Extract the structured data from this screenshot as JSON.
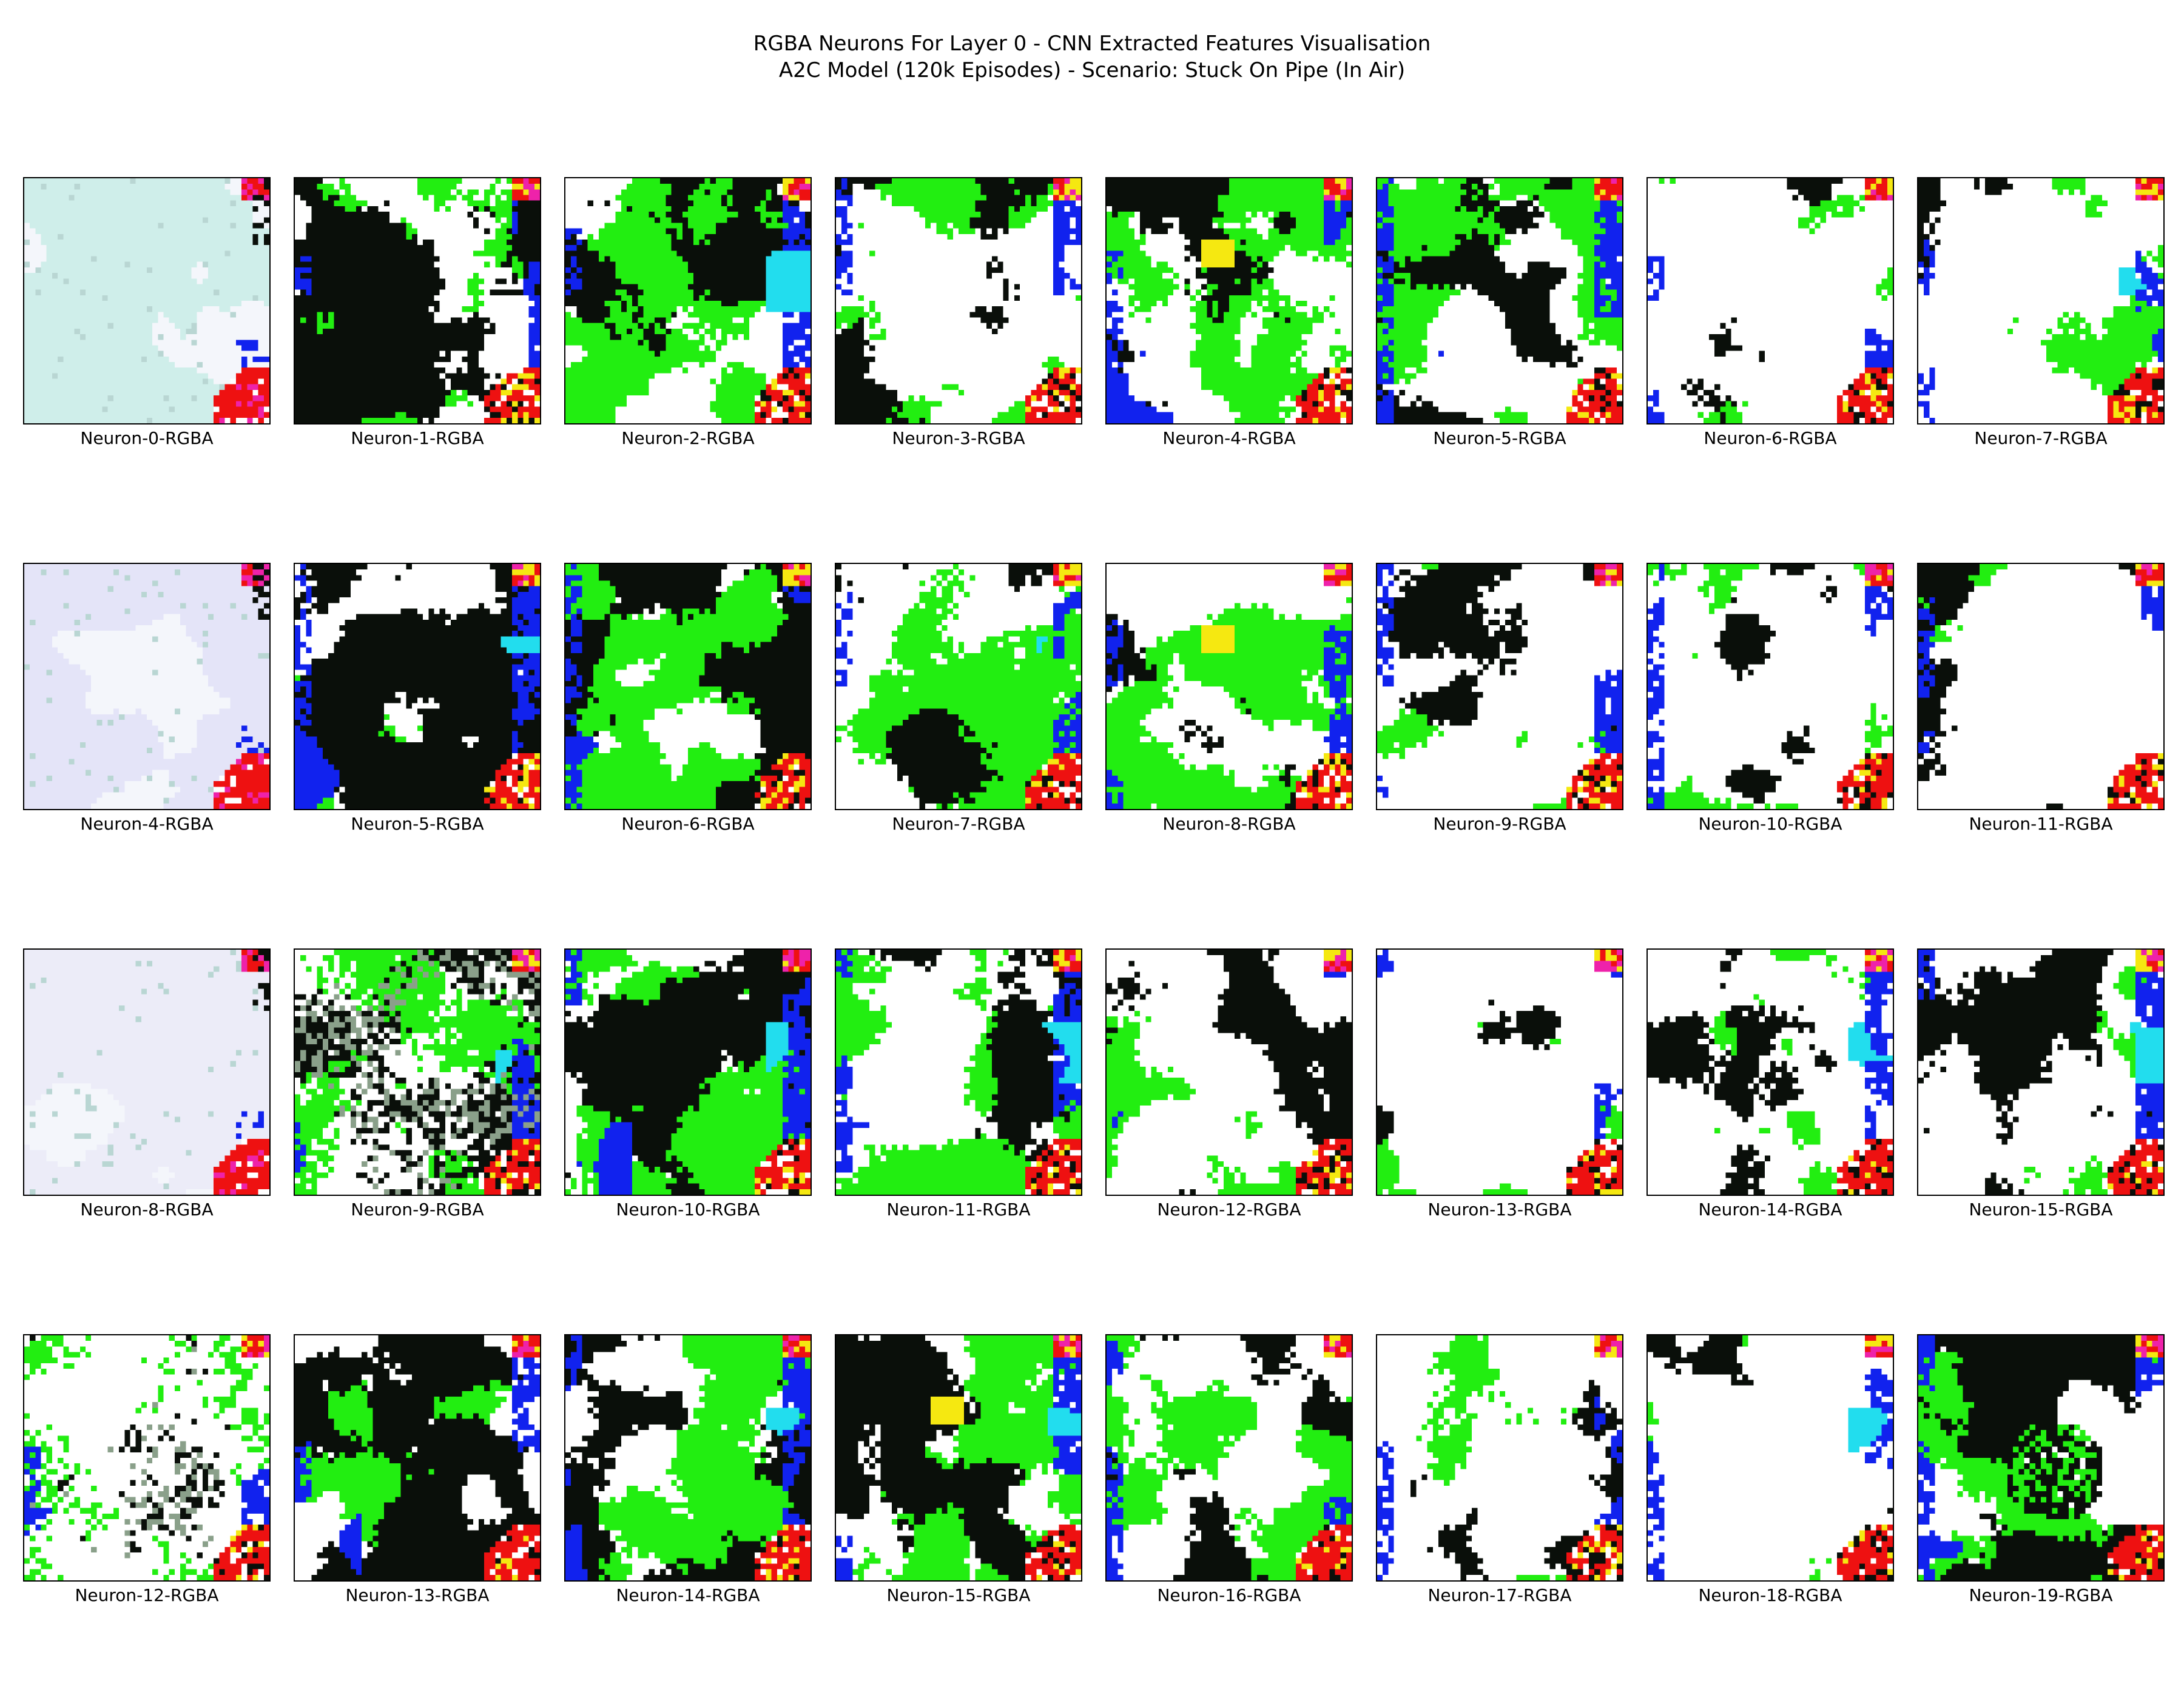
{
  "title": {
    "line1": "RGBA Neurons For Layer 0 - CNN Extracted Features Visualisation",
    "line2": "A2C Model (120k Episodes) - Scenario: Stuck On Pipe (In Air)"
  },
  "rows": [
    {
      "panels": [
        {
          "label": "Neuron-0-RGBA",
          "style": "pale",
          "tint": "#cfeeea"
        },
        {
          "label": "Neuron-1-RGBA",
          "style": "dense"
        },
        {
          "label": "Neuron-2-RGBA",
          "style": "green-dense"
        },
        {
          "label": "Neuron-3-RGBA",
          "style": "medium"
        },
        {
          "label": "Neuron-4-RGBA",
          "style": "medium-yellow"
        },
        {
          "label": "Neuron-5-RGBA",
          "style": "medium"
        },
        {
          "label": "Neuron-6-RGBA",
          "style": "sparse"
        },
        {
          "label": "Neuron-7-RGBA",
          "style": "sparse"
        }
      ]
    },
    {
      "panels": [
        {
          "label": "Neuron-4-RGBA",
          "style": "pale",
          "tint": "#e4e4f8"
        },
        {
          "label": "Neuron-5-RGBA",
          "style": "dense"
        },
        {
          "label": "Neuron-6-RGBA",
          "style": "green-dense"
        },
        {
          "label": "Neuron-7-RGBA",
          "style": "medium"
        },
        {
          "label": "Neuron-8-RGBA",
          "style": "medium-yellow"
        },
        {
          "label": "Neuron-9-RGBA",
          "style": "medium"
        },
        {
          "label": "Neuron-10-RGBA",
          "style": "sparse"
        },
        {
          "label": "Neuron-11-RGBA",
          "style": "sparse-dark"
        }
      ]
    },
    {
      "panels": [
        {
          "label": "Neuron-8-RGBA",
          "style": "pale",
          "tint": "#ececf8"
        },
        {
          "label": "Neuron-9-RGBA",
          "style": "noisy"
        },
        {
          "label": "Neuron-10-RGBA",
          "style": "green-dense"
        },
        {
          "label": "Neuron-11-RGBA",
          "style": "medium"
        },
        {
          "label": "Neuron-12-RGBA",
          "style": "medium-yellow"
        },
        {
          "label": "Neuron-13-RGBA",
          "style": "sparse"
        },
        {
          "label": "Neuron-14-RGBA",
          "style": "sparse"
        },
        {
          "label": "Neuron-15-RGBA",
          "style": "sparse-dark"
        }
      ]
    },
    {
      "panels": [
        {
          "label": "Neuron-12-RGBA",
          "style": "noisy-light"
        },
        {
          "label": "Neuron-13-RGBA",
          "style": "dense"
        },
        {
          "label": "Neuron-14-RGBA",
          "style": "green-dense"
        },
        {
          "label": "Neuron-15-RGBA",
          "style": "medium-yellow"
        },
        {
          "label": "Neuron-16-RGBA",
          "style": "medium"
        },
        {
          "label": "Neuron-17-RGBA",
          "style": "sparse"
        },
        {
          "label": "Neuron-18-RGBA",
          "style": "sparse"
        },
        {
          "label": "Neuron-19-RGBA",
          "style": "dark-blob"
        }
      ]
    }
  ],
  "colors": {
    "green": "#22ee11",
    "blue": "#1122ee",
    "black": "#0a0f0a",
    "red": "#ee1111",
    "yellow": "#f5e811",
    "cyan": "#22ddee",
    "magenta": "#ee22aa"
  }
}
